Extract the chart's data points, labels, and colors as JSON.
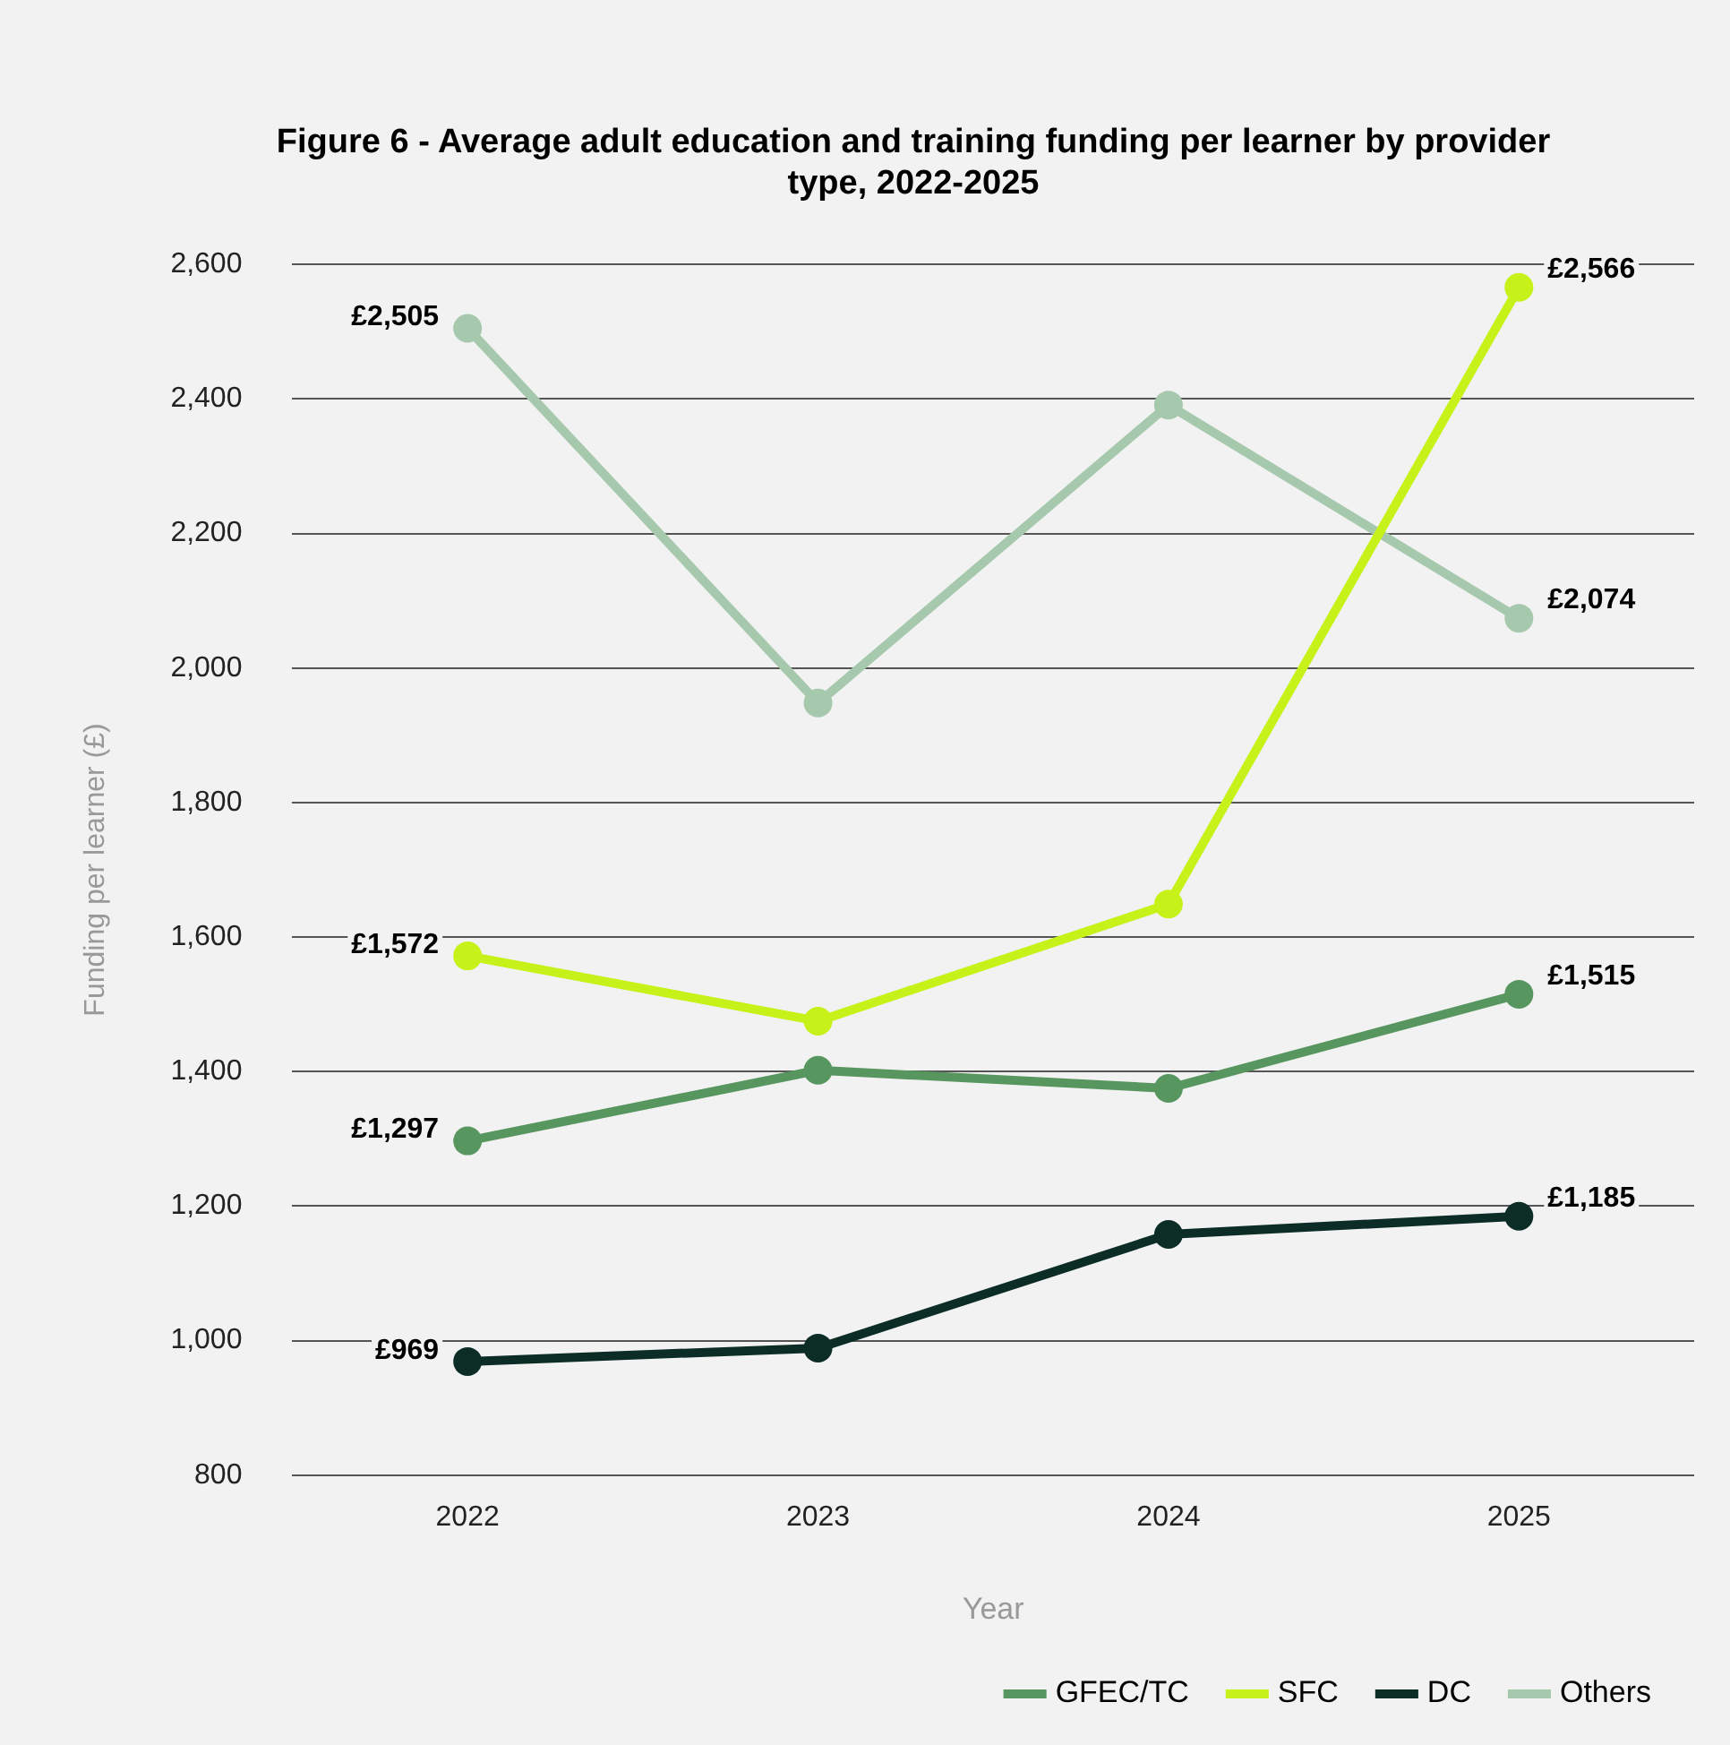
{
  "chart_data": {
    "type": "line",
    "title": "Figure 6 - Average adult education and training funding per learner by provider type, 2022-2025",
    "xlabel": "Year",
    "ylabel": "Funding per learner (£)",
    "categories": [
      "2022",
      "2023",
      "2024",
      "2025"
    ],
    "series": [
      {
        "name": "GFEC/TC",
        "color": "#58965f",
        "values": [
          1297,
          1402,
          1375,
          1515
        ],
        "value_labels": [
          "£1,297",
          null,
          null,
          "£1,515"
        ]
      },
      {
        "name": "SFC",
        "color": "#c6f21a",
        "values": [
          1572,
          1475,
          1649,
          2566
        ],
        "value_labels": [
          "£1,572",
          null,
          null,
          "£2,566"
        ]
      },
      {
        "name": "DC",
        "color": "#0c2d26",
        "values": [
          969,
          989,
          1158,
          1185
        ],
        "value_labels": [
          "£969",
          null,
          null,
          "£1,185"
        ]
      },
      {
        "name": "Others",
        "color": "#a6c9ad",
        "values": [
          2505,
          1948,
          2391,
          2074
        ],
        "value_labels": [
          "£2,505",
          null,
          null,
          "£2,074"
        ]
      }
    ],
    "ylim": [
      800,
      2600
    ],
    "yticks": [
      800,
      {
        "value": 1000,
        "label": "1,000"
      },
      {
        "value": 1200,
        "label": "1,200"
      },
      {
        "value": 1400,
        "label": "1,400"
      },
      {
        "value": 1600,
        "label": "1,600"
      },
      {
        "value": 1800,
        "label": "1,800"
      },
      {
        "value": 2000,
        "label": "2,000"
      },
      {
        "value": 2200,
        "label": "2,200"
      },
      {
        "value": 2400,
        "label": "2,400"
      },
      {
        "value": 2600,
        "label": "2,600"
      }
    ],
    "grid": "y",
    "legend": "bottom right",
    "marker": "circle",
    "line_style": "solid"
  }
}
